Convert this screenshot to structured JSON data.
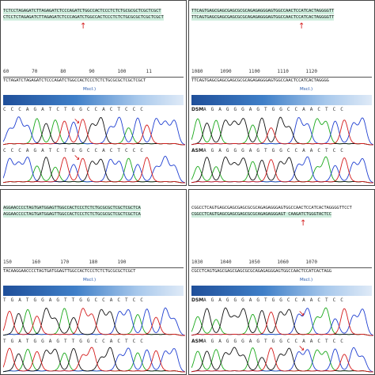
{
  "panels": [
    {
      "id": "top-left",
      "seq1": "TCTCCTAGAGATCTTAGAGATCTCCCAGATCTGGCCACTCCCTCTCTGCGCGCTCGCTCGCT",
      "seq2": "CTCCTCTAGAGATCTTAGAGATCTCCCAGATCTGGCCACTCCCTCTCTGCGCGCTCGCTCGCT",
      "ruler": "60        70        80        90        100       11",
      "ruler_seq": "TCTAGATCTAGAGATCTCCCAGATCTGGCCACTCCCTCTCTGCGCGCTCGCTCGCT",
      "enzyme": "MscI.)",
      "trace_seq": "C C C A G A T C T G G C C A C T C C C",
      "labels": []
    },
    {
      "id": "top-right",
      "seq1": "TTCAGTGAGCGAGCGAGCGCGCAGAGAGGGAGTGGCCAACTCCATCACTAGGGGTT",
      "seq2": "TTCAGTGAGCGAGCGAGCGCGCAGAGAGGGAGTGGCCAACTCCATCACTAGGGGTT",
      "ruler": "1080      1090      1100      1110      1120",
      "ruler_seq": "TTCAGTGAGCGAGCGAGCGCGCAGAGAGGGAGTGGCCAACTCCATCACTAGGGG",
      "enzyme": "MscI.)",
      "trace_seq": "A G A G G G A G T G G C C A A C T C C",
      "labels": [
        "DSM",
        "ASM"
      ]
    },
    {
      "id": "bottom-left",
      "seq1": "AGGAACCCCTAGTGATGGAGTTGGCCACTCCCTCTCTGCGCGCTCGCTCGCTCA",
      "seq2": "AGGAACCCCTAGTGATGGAGTTGGCCACTCCCTCTCTGCGCGCTCGCTCGCTCA",
      "ruler": "150       160       170       180       190",
      "ruler_seq": "TACAAGGAACCCCTAGTGATGGAGTTGGCCACTCCCTCTCTGCGCGCTCGCT",
      "enzyme": "MscI.)",
      "trace_seq": "T G A T G G A G T T G G C C A C T C C",
      "labels": []
    },
    {
      "id": "bottom-right",
      "seq1": "CGGCCTCAGTGAGCGAGCGAGCGCGCAGAGAGGGAGTGGCCAACTCCATCACTAGGGGTTCCT",
      "seq2": "CGGCCTCAGTGAGCGAGCGAGCGCGCAGAGAGGGAGT CAAGATCTGGGTACTCC",
      "ruler": "1030      1040      1050      1060      1070",
      "ruler_seq": "CGCCTCAGTGAGCGAGCGAGCGCGCAGAGAGGGAGTGGCCAACTCCATCACTAGG",
      "enzyme": "MscI.)",
      "trace_seq": "A G A G G G A G T G G C C A A C T C C",
      "labels": [
        "DSM",
        "ASM"
      ]
    }
  ],
  "colors": {
    "A": "#1aa81a",
    "C": "#1f3fd1",
    "G": "#111111",
    "T": "#d41b1b",
    "arrow": "#d41b1b"
  }
}
